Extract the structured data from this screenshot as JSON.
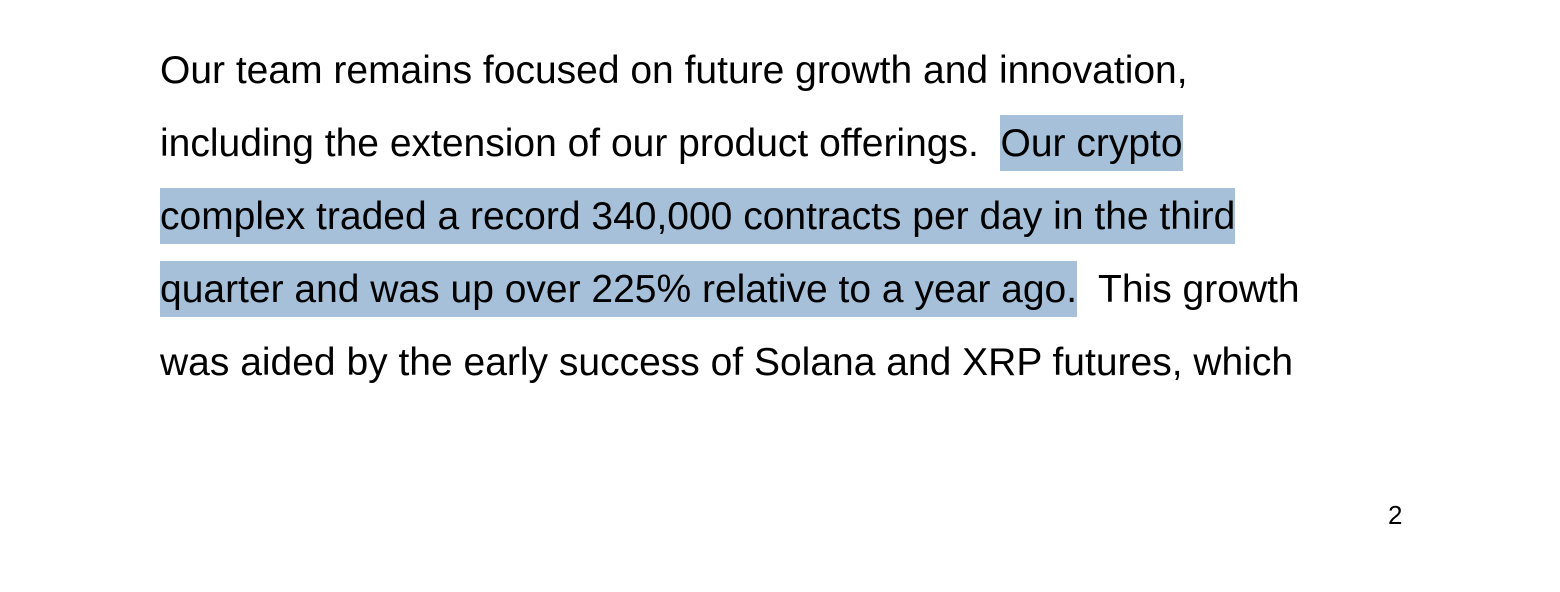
{
  "paragraph": {
    "lines": [
      [
        {
          "text": "Our team remains focused on future growth and innovation,",
          "highlighted": false
        }
      ],
      [
        {
          "text": "including the extension of our product offerings.  ",
          "highlighted": false
        },
        {
          "text": "Our crypto",
          "highlighted": true
        }
      ],
      [
        {
          "text": "complex traded a record 340,000 contracts per day in the third",
          "highlighted": true
        }
      ],
      [
        {
          "text": "quarter and was up over 225% relative to a year ago.",
          "highlighted": true
        },
        {
          "text": "  This growth",
          "highlighted": false
        }
      ],
      [
        {
          "text": "was aided by the early success of Solana and XRP futures, which",
          "highlighted": false
        }
      ]
    ]
  },
  "page_number": "2"
}
